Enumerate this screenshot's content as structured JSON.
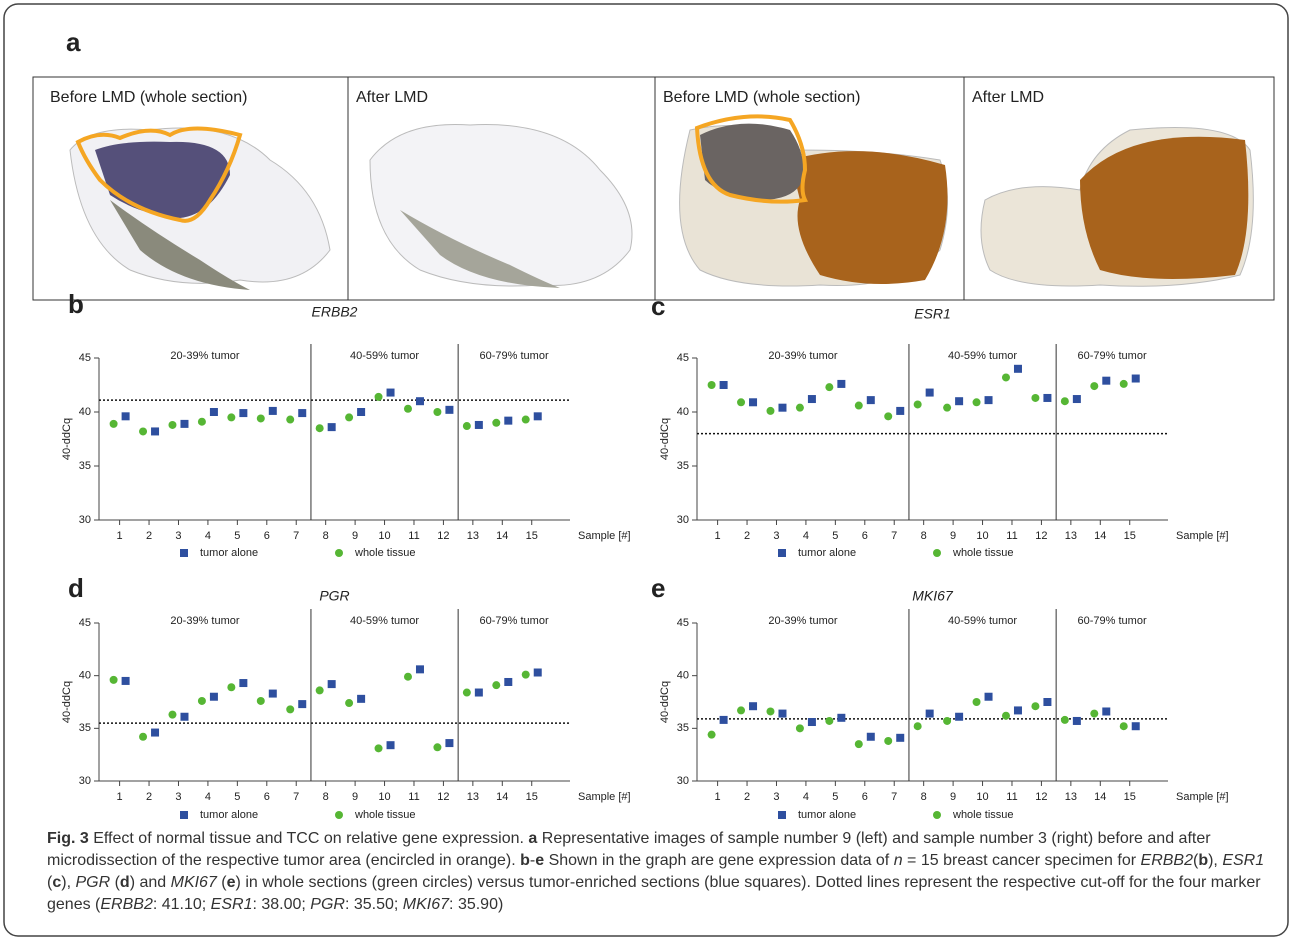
{
  "figure": {
    "label_a": "a",
    "images": [
      {
        "caption": "Before LMD (whole section)"
      },
      {
        "caption": "After LMD"
      },
      {
        "caption": "Before LMD (whole section)"
      },
      {
        "caption": "After LMD"
      }
    ],
    "caption": [
      {
        "text": "Fig. 3",
        "style": "bold"
      },
      {
        "text": " Effect of normal tissue and TCC on relative gene expression. "
      },
      {
        "text": "a",
        "style": "bold"
      },
      {
        "text": " Representative images of sample number 9 (left) and sample number 3 (right) before and after microdissection of the respective tumor area (encircled in orange). "
      },
      {
        "text": "b",
        "style": "bold"
      },
      {
        "text": "-"
      },
      {
        "text": "e",
        "style": "bold"
      },
      {
        "text": " Shown in the graph are gene expression data of "
      },
      {
        "text": "n",
        "style": "italic"
      },
      {
        "text": " = 15 breast cancer specimen for "
      },
      {
        "text": "ERBB2",
        "style": "italic"
      },
      {
        "text": "("
      },
      {
        "text": "b",
        "style": "bold"
      },
      {
        "text": "), "
      },
      {
        "text": "ESR1",
        "style": "italic"
      },
      {
        "text": " ("
      },
      {
        "text": "c",
        "style": "bold"
      },
      {
        "text": "), "
      },
      {
        "text": "PGR",
        "style": "italic"
      },
      {
        "text": " ("
      },
      {
        "text": "d",
        "style": "bold"
      },
      {
        "text": ") and "
      },
      {
        "text": "MKI67",
        "style": "italic"
      },
      {
        "text": " ("
      },
      {
        "text": "e",
        "style": "bold"
      },
      {
        "text": ") in whole sections (green circles) versus tumor-enriched sections (blue squares). Dotted lines represent the respective cut-off for the four marker genes ("
      },
      {
        "text": "ERBB2",
        "style": "italic"
      },
      {
        "text": ": 41.10; "
      },
      {
        "text": "ESR1",
        "style": "italic"
      },
      {
        "text": ": 38.00; "
      },
      {
        "text": "PGR",
        "style": "italic"
      },
      {
        "text": ": 35.50; "
      },
      {
        "text": "MKI67",
        "style": "italic"
      },
      {
        "text": ": 35.90)"
      }
    ]
  },
  "chart_data": [
    {
      "type": "scatter",
      "panel": "b",
      "title": "ERBB2",
      "ylabel": "40-ddCq",
      "xlabel": "Sample [#]",
      "x": [
        1,
        2,
        3,
        4,
        5,
        6,
        7,
        8,
        9,
        10,
        11,
        12,
        13,
        14,
        15
      ],
      "xticks": [
        1,
        2,
        3,
        4,
        5,
        6,
        7,
        8,
        9,
        10,
        11,
        12,
        13,
        14,
        15
      ],
      "xlim": [
        0.3,
        16.3
      ],
      "ylim": [
        30,
        45
      ],
      "yticks": [
        30,
        35,
        40,
        45
      ],
      "cutoff": 41.1,
      "dividers": [
        7.5,
        12.5
      ],
      "group_labels": [
        "20-39% tumor",
        "40-59% tumor",
        "60-79% tumor"
      ],
      "series": [
        {
          "name": "tumor alone",
          "color": "#2e4f9f",
          "marker": "square",
          "values": [
            39.6,
            38.2,
            38.9,
            40.0,
            39.9,
            40.1,
            39.9,
            38.6,
            40.0,
            41.8,
            41.0,
            40.2,
            38.8,
            39.2,
            39.6
          ]
        },
        {
          "name": "whole tissue",
          "color": "#56b634",
          "marker": "circle",
          "values": [
            38.9,
            38.2,
            38.8,
            39.1,
            39.5,
            39.4,
            39.3,
            38.5,
            39.5,
            41.4,
            40.3,
            40.0,
            38.7,
            39.0,
            39.3
          ]
        }
      ]
    },
    {
      "type": "scatter",
      "panel": "c",
      "title": "ESR1",
      "ylabel": "40-ddCq",
      "xlabel": "Sample [#]",
      "x": [
        1,
        2,
        3,
        4,
        5,
        6,
        7,
        8,
        9,
        10,
        11,
        12,
        13,
        14,
        15
      ],
      "xticks": [
        1,
        2,
        3,
        4,
        5,
        6,
        7,
        8,
        9,
        10,
        11,
        12,
        13,
        14,
        15
      ],
      "xlim": [
        0.3,
        16.3
      ],
      "ylim": [
        30,
        45
      ],
      "yticks": [
        30,
        35,
        40,
        45
      ],
      "cutoff": 38.0,
      "dividers": [
        7.5,
        12.5
      ],
      "group_labels": [
        "20-39% tumor",
        "40-59% tumor",
        "60-79% tumor"
      ],
      "series": [
        {
          "name": "tumor alone",
          "color": "#2e4f9f",
          "marker": "square",
          "values": [
            42.5,
            40.9,
            40.4,
            41.2,
            42.6,
            41.1,
            40.1,
            41.8,
            41.0,
            41.1,
            44.0,
            41.3,
            41.2,
            42.9,
            43.1
          ]
        },
        {
          "name": "whole tissue",
          "color": "#56b634",
          "marker": "circle",
          "values": [
            42.5,
            40.9,
            40.1,
            40.4,
            42.3,
            40.6,
            39.6,
            40.7,
            40.4,
            40.9,
            43.2,
            41.3,
            41.0,
            42.4,
            42.6
          ]
        }
      ]
    },
    {
      "type": "scatter",
      "panel": "d",
      "title": "PGR",
      "ylabel": "40-ddCq",
      "xlabel": "Sample [#]",
      "x": [
        1,
        2,
        3,
        4,
        5,
        6,
        7,
        8,
        9,
        10,
        11,
        12,
        13,
        14,
        15
      ],
      "xticks": [
        1,
        2,
        3,
        4,
        5,
        6,
        7,
        8,
        9,
        10,
        11,
        12,
        13,
        14,
        15
      ],
      "xlim": [
        0.3,
        16.3
      ],
      "ylim": [
        30,
        45
      ],
      "yticks": [
        30,
        35,
        40,
        45
      ],
      "cutoff": 35.5,
      "dividers": [
        7.5,
        12.5
      ],
      "group_labels": [
        "20-39% tumor",
        "40-59% tumor",
        "60-79% tumor"
      ],
      "series": [
        {
          "name": "tumor alone",
          "color": "#2e4f9f",
          "marker": "square",
          "values": [
            39.5,
            34.6,
            36.1,
            38.0,
            39.3,
            38.3,
            37.3,
            39.2,
            37.8,
            33.4,
            40.6,
            33.6,
            38.4,
            39.4,
            40.3
          ]
        },
        {
          "name": "whole tissue",
          "color": "#56b634",
          "marker": "circle",
          "values": [
            39.6,
            34.2,
            36.3,
            37.6,
            38.9,
            37.6,
            36.8,
            38.6,
            37.4,
            33.1,
            39.9,
            33.2,
            38.4,
            39.1,
            40.1
          ]
        }
      ]
    },
    {
      "type": "scatter",
      "panel": "e",
      "title": "MKI67",
      "ylabel": "40-ddCq",
      "xlabel": "Sample [#]",
      "x": [
        1,
        2,
        3,
        4,
        5,
        6,
        7,
        8,
        9,
        10,
        11,
        12,
        13,
        14,
        15
      ],
      "xticks": [
        1,
        2,
        3,
        4,
        5,
        6,
        7,
        8,
        9,
        10,
        11,
        12,
        13,
        14,
        15
      ],
      "xlim": [
        0.3,
        16.3
      ],
      "ylim": [
        30,
        45
      ],
      "yticks": [
        30,
        35,
        40,
        45
      ],
      "cutoff": 35.9,
      "dividers": [
        7.5,
        12.5
      ],
      "group_labels": [
        "20-39% tumor",
        "40-59% tumor",
        "60-79% tumor"
      ],
      "series": [
        {
          "name": "tumor alone",
          "color": "#2e4f9f",
          "marker": "square",
          "values": [
            35.8,
            37.1,
            36.4,
            35.6,
            36.0,
            34.2,
            34.1,
            36.4,
            36.1,
            38.0,
            36.7,
            37.5,
            35.7,
            36.6,
            35.2
          ]
        },
        {
          "name": "whole tissue",
          "color": "#56b634",
          "marker": "circle",
          "values": [
            34.4,
            36.7,
            36.6,
            35.0,
            35.7,
            33.5,
            33.8,
            35.2,
            35.7,
            37.5,
            36.2,
            37.1,
            35.8,
            36.4,
            35.2
          ]
        }
      ]
    }
  ]
}
